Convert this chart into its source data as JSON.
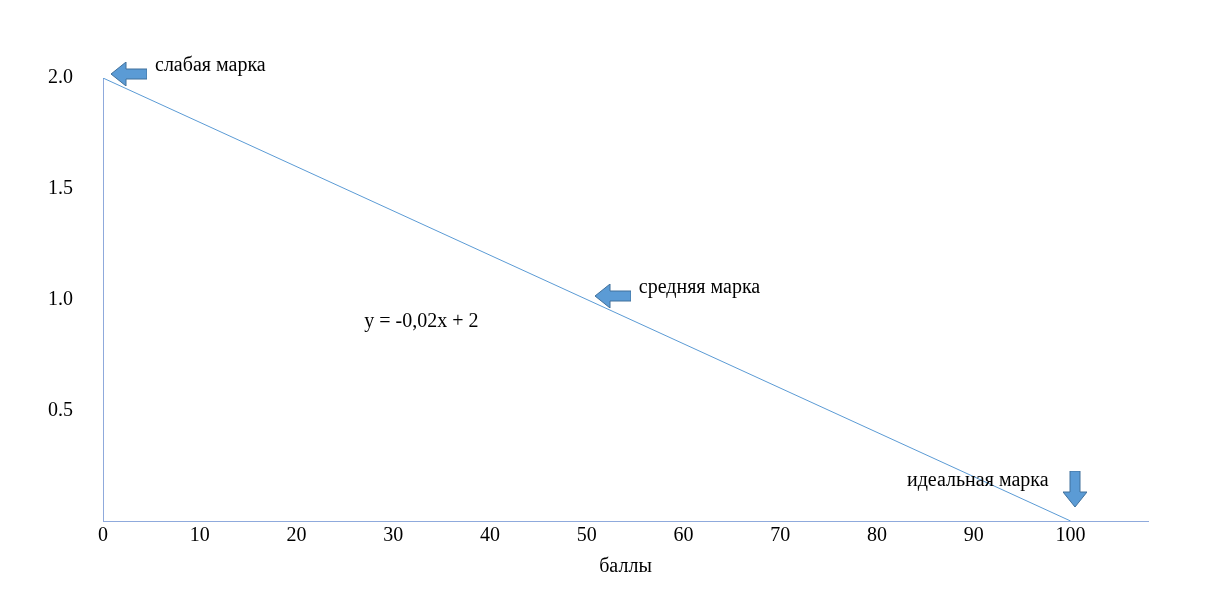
{
  "chart_data": {
    "type": "line",
    "xlabel": "баллы",
    "x": [
      0,
      100
    ],
    "values": [
      2,
      0
    ],
    "color": "#5b9bd5",
    "marker": "none",
    "xlim": [
      0,
      108
    ],
    "xticks": [
      0,
      10,
      20,
      30,
      40,
      50,
      60,
      70,
      80,
      90,
      100
    ],
    "ylim": [
      0,
      2
    ],
    "yticks": [
      {
        "value": 0.5,
        "label": "0.5"
      },
      {
        "value": 1,
        "label": "1.0"
      },
      {
        "value": 1.5,
        "label": "1.5"
      },
      {
        "value": 2,
        "label": "2.0"
      }
    ],
    "grid": false,
    "legend": false,
    "annotations": [
      "y = -0,02x + 2",
      {
        "text": "слабая марка",
        "x": 0,
        "y": 2
      },
      {
        "text": "средняя марка",
        "x": 50,
        "y": 1
      },
      {
        "text": "идеальная марка",
        "x": 100,
        "y": 0
      }
    ]
  }
}
